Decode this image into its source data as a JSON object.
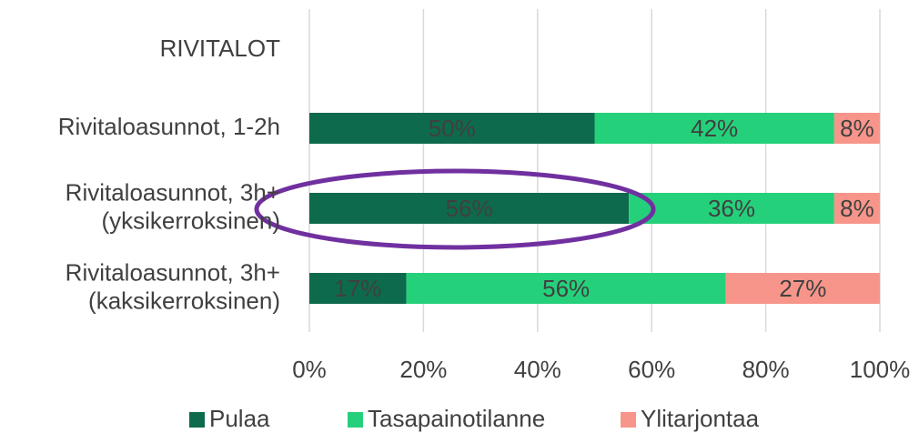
{
  "chart_data": {
    "type": "stacked-bar-horizontal",
    "categories": [
      "RIVITALOT",
      "Rivitaloasunnot, 1-2h",
      "Rivitaloasunnot, 3h+\n(yksikerroksinen)",
      "Rivitaloasunnot, 3h+\n(kaksikerroksinen)"
    ],
    "series": [
      {
        "name": "Pulaa",
        "color": "#0e6a4c",
        "values": [
          null,
          50,
          56,
          17
        ],
        "value_labels": [
          null,
          "50%",
          "56%",
          "17%"
        ]
      },
      {
        "name": "Tasapainotilanne",
        "color": "#25d07b",
        "values": [
          null,
          42,
          36,
          56
        ],
        "value_labels": [
          null,
          "42%",
          "36%",
          "56%"
        ]
      },
      {
        "name": "Ylitarjontaa",
        "color": "#f7958a",
        "values": [
          null,
          8,
          8,
          27
        ],
        "value_labels": [
          null,
          "8%",
          "8%",
          "27%"
        ]
      }
    ],
    "xlim": [
      0,
      100
    ],
    "xticks": [
      {
        "value": 0,
        "label": "0%"
      },
      {
        "value": 20,
        "label": "20%"
      },
      {
        "value": 40,
        "label": "40%"
      },
      {
        "value": 60,
        "label": "60%"
      },
      {
        "value": 80,
        "label": "80%"
      },
      {
        "value": 100,
        "label": "100%"
      }
    ],
    "grid": true,
    "legend": "bottom"
  }
}
